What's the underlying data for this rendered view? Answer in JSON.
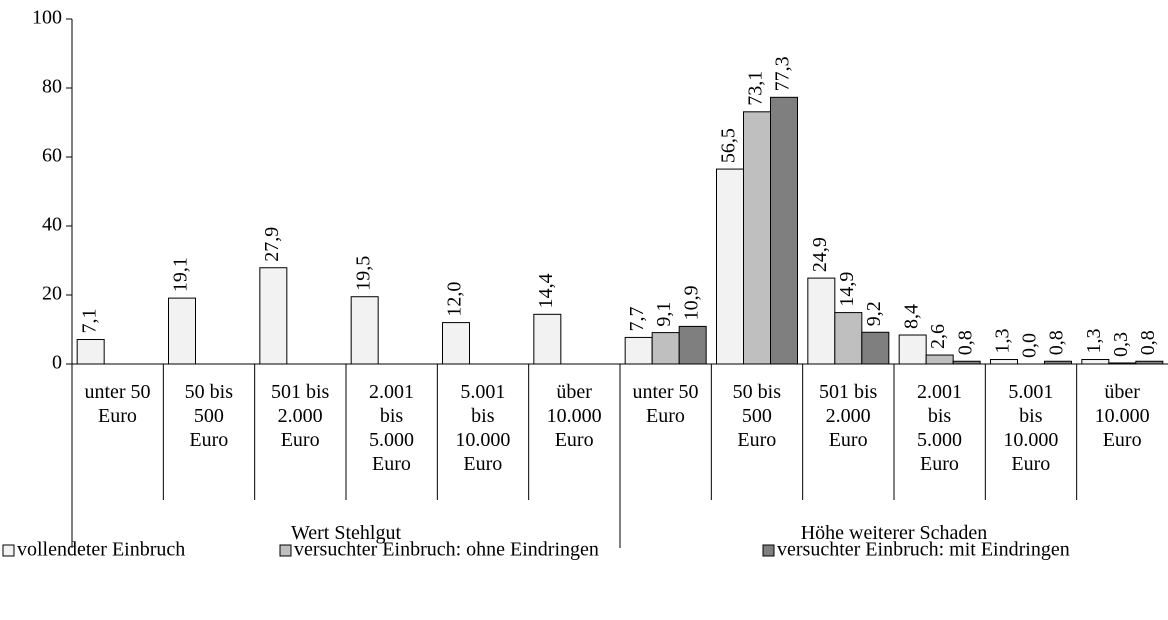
{
  "chart_data": {
    "type": "bar",
    "categories": [
      "unter 50\nEuro",
      "50 bis\n500\nEuro",
      "501 bis\n2.000\nEuro",
      "2.001\nbis\n5.000\nEuro",
      "5.001\nbis\n10.000\nEuro",
      "über\n10.000\nEuro",
      "unter 50\nEuro",
      "50 bis\n500\nEuro",
      "501 bis\n2.000\nEuro",
      "2.001\nbis\n5.000\nEuro",
      "5.001\nbis\n10.000\nEuro",
      "über\n10.000\nEuro"
    ],
    "groups": [
      "Wert Stehlgut",
      "Höhe weiterer Schaden"
    ],
    "series": [
      {
        "name": "vollendeter Einbruch",
        "color": "#f2f2f2",
        "values": [
          7.1,
          19.1,
          27.9,
          19.5,
          12.0,
          14.4,
          7.7,
          56.5,
          24.9,
          8.4,
          1.3,
          1.3
        ],
        "value_labels": [
          "7,1",
          "19,1",
          "27,9",
          "19,5",
          "12,0",
          "14,4",
          "7,7",
          "56,5",
          "24,9",
          "8,4",
          "1,3",
          "1,3"
        ]
      },
      {
        "name": "versuchter Einbruch: ohne Eindringen",
        "color": "#bfbfbf",
        "values": [
          null,
          null,
          null,
          null,
          null,
          null,
          9.1,
          73.1,
          14.9,
          2.6,
          0.0,
          0.3
        ],
        "value_labels": [
          null,
          null,
          null,
          null,
          null,
          null,
          "9,1",
          "73,1",
          "14,9",
          "2,6",
          "0,0",
          "0,3"
        ]
      },
      {
        "name": "versuchter Einbruch: mit Eindringen",
        "color": "#7f7f7f",
        "values": [
          null,
          null,
          null,
          null,
          null,
          null,
          10.9,
          77.3,
          9.2,
          0.8,
          0.8,
          0.8
        ],
        "value_labels": [
          null,
          null,
          null,
          null,
          null,
          null,
          "10,9",
          "77,3",
          "9,2",
          "0,8",
          "0,8",
          "0,8"
        ]
      }
    ],
    "ylim": [
      0,
      100
    ],
    "yticks": [
      0,
      20,
      40,
      60,
      80,
      100
    ],
    "grid": false,
    "legend": "bottom"
  }
}
